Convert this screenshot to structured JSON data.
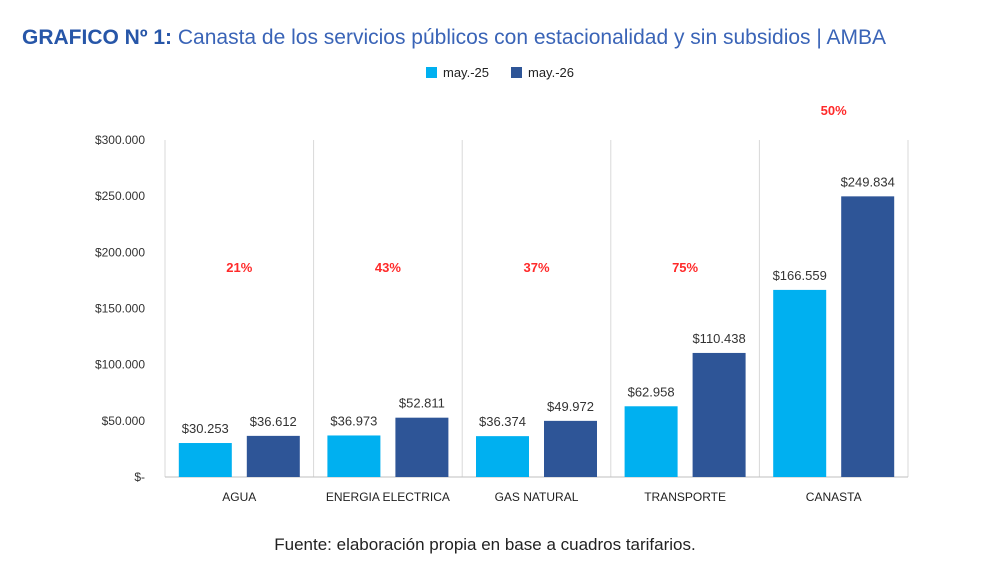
{
  "title_prefix": "GRAFICO Nº 1:",
  "title_text": "Canasta de los servicios públicos con estacionalidad y sin subsidios | AMBA",
  "source": "Fuente: elaboración propia en base a cuadros tarifarios.",
  "colors": {
    "may25": "#00b0f0",
    "may26": "#2e5597",
    "grid": "#d9d9d9",
    "pct": "#ff2a2a"
  },
  "chart_data": {
    "type": "bar",
    "categories": [
      "AGUA",
      "ENERGIA ELECTRICA",
      "GAS NATURAL",
      "TRANSPORTE",
      "CANASTA"
    ],
    "series": [
      {
        "name": "may.-25",
        "values": [
          30253,
          36973,
          36374,
          62958,
          166559
        ],
        "labels": [
          "$30.253",
          "$36.973",
          "$36.374",
          "$62.958",
          "$166.559"
        ]
      },
      {
        "name": "may.-26",
        "values": [
          36612,
          52811,
          49972,
          110438,
          249834
        ],
        "labels": [
          "$36.612",
          "$52.811",
          "$49.972",
          "$110.438",
          "$249.834"
        ]
      }
    ],
    "annotations": [
      "21%",
      "43%",
      "37%",
      "75%",
      "50%"
    ],
    "yticks": [
      0,
      50000,
      100000,
      150000,
      200000,
      250000,
      300000
    ],
    "ytick_labels": [
      "$-",
      "$50.000",
      "$100.000",
      "$150.000",
      "$200.000",
      "$250.000",
      "$300.000"
    ],
    "ylim": [
      0,
      300000
    ],
    "legend_position": "top",
    "grid": "vertical category separators"
  }
}
